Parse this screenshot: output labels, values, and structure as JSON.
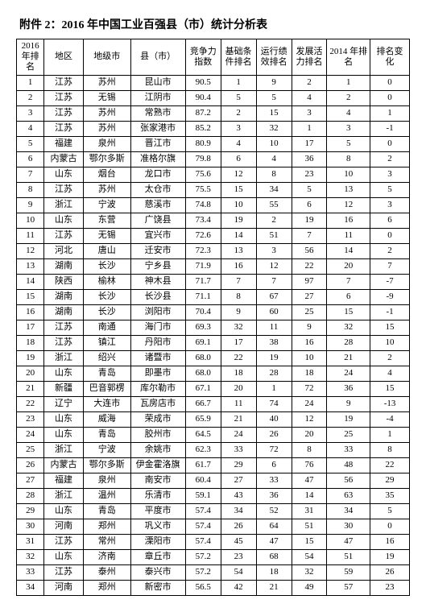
{
  "title": "附件 2：2016 年中国工业百强县（市）统计分析表",
  "columns": [
    "2016 年排名",
    "地区",
    "地级市",
    "县（市）",
    "竞争力指数",
    "基础条件排名",
    "运行绩效排名",
    "发展活力排名",
    "2014 年排名",
    "排名变化"
  ],
  "rows": [
    [
      "1",
      "江苏",
      "苏州",
      "昆山市",
      "90.5",
      "1",
      "9",
      "2",
      "1",
      "0"
    ],
    [
      "2",
      "江苏",
      "无锡",
      "江阴市",
      "90.4",
      "5",
      "5",
      "4",
      "2",
      "0"
    ],
    [
      "3",
      "江苏",
      "苏州",
      "常熟市",
      "87.2",
      "2",
      "15",
      "3",
      "4",
      "1"
    ],
    [
      "4",
      "江苏",
      "苏州",
      "张家港市",
      "85.2",
      "3",
      "32",
      "1",
      "3",
      "-1"
    ],
    [
      "5",
      "福建",
      "泉州",
      "晋江市",
      "80.9",
      "4",
      "10",
      "17",
      "5",
      "0"
    ],
    [
      "6",
      "内蒙古",
      "鄂尔多斯",
      "准格尔旗",
      "79.8",
      "6",
      "4",
      "36",
      "8",
      "2"
    ],
    [
      "7",
      "山东",
      "烟台",
      "龙口市",
      "75.6",
      "12",
      "8",
      "23",
      "10",
      "3"
    ],
    [
      "8",
      "江苏",
      "苏州",
      "太仓市",
      "75.5",
      "15",
      "34",
      "5",
      "13",
      "5"
    ],
    [
      "9",
      "浙江",
      "宁波",
      "慈溪市",
      "74.8",
      "10",
      "55",
      "6",
      "12",
      "3"
    ],
    [
      "10",
      "山东",
      "东营",
      "广饶县",
      "73.4",
      "19",
      "2",
      "19",
      "16",
      "6"
    ],
    [
      "11",
      "江苏",
      "无锡",
      "宜兴市",
      "72.6",
      "14",
      "51",
      "7",
      "11",
      "0"
    ],
    [
      "12",
      "河北",
      "唐山",
      "迁安市",
      "72.3",
      "13",
      "3",
      "56",
      "14",
      "2"
    ],
    [
      "13",
      "湖南",
      "长沙",
      "宁乡县",
      "71.9",
      "16",
      "12",
      "22",
      "20",
      "7"
    ],
    [
      "14",
      "陕西",
      "榆林",
      "神木县",
      "71.7",
      "7",
      "7",
      "97",
      "7",
      "-7"
    ],
    [
      "15",
      "湖南",
      "长沙",
      "长沙县",
      "71.1",
      "8",
      "67",
      "27",
      "6",
      "-9"
    ],
    [
      "16",
      "湖南",
      "长沙",
      "浏阳市",
      "70.4",
      "9",
      "60",
      "25",
      "15",
      "-1"
    ],
    [
      "17",
      "江苏",
      "南通",
      "海门市",
      "69.3",
      "32",
      "11",
      "9",
      "32",
      "15"
    ],
    [
      "18",
      "江苏",
      "镇江",
      "丹阳市",
      "69.1",
      "17",
      "38",
      "16",
      "28",
      "10"
    ],
    [
      "19",
      "浙江",
      "绍兴",
      "诸暨市",
      "68.0",
      "22",
      "19",
      "10",
      "21",
      "2"
    ],
    [
      "20",
      "山东",
      "青岛",
      "即墨市",
      "68.0",
      "18",
      "28",
      "18",
      "24",
      "4"
    ],
    [
      "21",
      "新疆",
      "巴音郭楞",
      "库尔勒市",
      "67.1",
      "20",
      "1",
      "72",
      "36",
      "15"
    ],
    [
      "22",
      "辽宁",
      "大连市",
      "瓦房店市",
      "66.7",
      "11",
      "74",
      "24",
      "9",
      "-13"
    ],
    [
      "23",
      "山东",
      "威海",
      "荣成市",
      "65.9",
      "21",
      "40",
      "12",
      "19",
      "-4"
    ],
    [
      "24",
      "山东",
      "青岛",
      "胶州市",
      "64.5",
      "24",
      "26",
      "20",
      "25",
      "1"
    ],
    [
      "25",
      "浙江",
      "宁波",
      "余姚市",
      "62.3",
      "33",
      "72",
      "8",
      "33",
      "8"
    ],
    [
      "26",
      "内蒙古",
      "鄂尔多斯",
      "伊金霍洛旗",
      "61.7",
      "29",
      "6",
      "76",
      "48",
      "22"
    ],
    [
      "27",
      "福建",
      "泉州",
      "南安市",
      "60.4",
      "27",
      "33",
      "47",
      "56",
      "29"
    ],
    [
      "28",
      "浙江",
      "温州",
      "乐清市",
      "59.1",
      "43",
      "36",
      "14",
      "63",
      "35"
    ],
    [
      "29",
      "山东",
      "青岛",
      "平度市",
      "57.4",
      "34",
      "52",
      "31",
      "34",
      "5"
    ],
    [
      "30",
      "河南",
      "郑州",
      "巩义市",
      "57.4",
      "26",
      "64",
      "51",
      "30",
      "0"
    ],
    [
      "31",
      "江苏",
      "常州",
      "溧阳市",
      "57.4",
      "45",
      "47",
      "15",
      "47",
      "16"
    ],
    [
      "32",
      "山东",
      "济南",
      "章丘市",
      "57.2",
      "23",
      "68",
      "54",
      "51",
      "19"
    ],
    [
      "33",
      "江苏",
      "泰州",
      "泰兴市",
      "57.2",
      "54",
      "18",
      "32",
      "59",
      "26"
    ],
    [
      "34",
      "河南",
      "郑州",
      "新密市",
      "56.5",
      "42",
      "21",
      "49",
      "57",
      "23"
    ]
  ]
}
